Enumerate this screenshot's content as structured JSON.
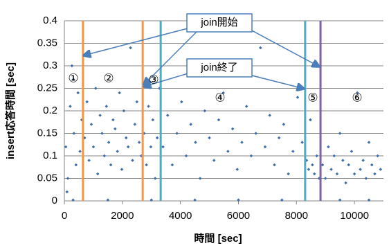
{
  "chart_data": {
    "type": "scatter",
    "x_label": "時間 [sec]",
    "y_label": "insert応答時間 [sec]",
    "xlim": [
      0,
      11000
    ],
    "xticks": [
      0,
      2000,
      4000,
      6000,
      8000,
      10000
    ],
    "ylim": [
      0,
      0.4
    ],
    "yticks": [
      0,
      0.05,
      0.1,
      0.15,
      0.2,
      0.25,
      0.3,
      0.35,
      0.4
    ],
    "grid": true,
    "color": "#3d6eab",
    "x": [
      50,
      120,
      200,
      260,
      330,
      400,
      470,
      540,
      600,
      90,
      310,
      700,
      780,
      850,
      930,
      1000,
      1080,
      1150,
      1230,
      1300,
      1380,
      1450,
      1530,
      1600,
      1680,
      1750,
      1830,
      1900,
      1980,
      2050,
      2130,
      2200,
      2280,
      2350,
      2430,
      2500,
      2580,
      2650,
      2750,
      2830,
      2900,
      2980,
      3050,
      3130,
      3200,
      3280,
      3400,
      3560,
      3720,
      3880,
      4040,
      4200,
      4360,
      4520,
      4680,
      4840,
      5000,
      5160,
      5320,
      5480,
      5640,
      5800,
      5960,
      6120,
      6280,
      6440,
      6600,
      6760,
      6920,
      7080,
      7240,
      7400,
      7560,
      7720,
      7880,
      8040,
      8200,
      300,
      1500,
      3000,
      4500,
      6000,
      7500,
      9500,
      10500,
      8350,
      8420,
      8480,
      8550,
      8620,
      8700,
      8780,
      8900,
      9000,
      9100,
      9200,
      9300,
      9400,
      9500,
      9600,
      9700,
      9800,
      9900,
      10000,
      10100,
      10200,
      10300,
      10400,
      10500,
      10600,
      10700,
      10800,
      10900
    ],
    "values": [
      0.12,
      0.05,
      0.21,
      0.3,
      0.15,
      0.08,
      0.24,
      0.11,
      0.18,
      0.02,
      0.27,
      0.14,
      0.22,
      0.09,
      0.17,
      0.12,
      0.25,
      0.06,
      0.19,
      0.15,
      0.1,
      0.21,
      0.13,
      0.08,
      0.18,
      0.16,
      0.11,
      0.24,
      0.07,
      0.2,
      0.14,
      0.12,
      0.34,
      0.09,
      0.17,
      0.22,
      0.13,
      0.1,
      0.15,
      0.08,
      0.21,
      0.12,
      0.18,
      0.05,
      0.14,
      0.25,
      0.12,
      0.19,
      0.08,
      0.15,
      0.22,
      0.1,
      0.17,
      0.13,
      0.05,
      0.2,
      0.14,
      0.09,
      0.18,
      0.24,
      0.11,
      0.16,
      0.07,
      0.13,
      0.21,
      0.1,
      0.15,
      0.34,
      0.12,
      0.19,
      0.08,
      0.14,
      0.17,
      0.06,
      0.11,
      0.23,
      0.13,
      0.002,
      0.002,
      0.002,
      0.002,
      0.002,
      0.002,
      0.002,
      0.002,
      0.09,
      0.07,
      0.18,
      0.08,
      0.06,
      0.1,
      0.05,
      0.08,
      0.05,
      0.12,
      0.07,
      0.1,
      0.06,
      0.15,
      0.09,
      0.04,
      0.08,
      0.11,
      0.06,
      0.24,
      0.07,
      0.09,
      0.05,
      0.13,
      0.08,
      0.06,
      0.1,
      0.07
    ],
    "vlines": [
      {
        "x": 640,
        "color": "#f79646"
      },
      {
        "x": 2700,
        "color": "#f79646"
      },
      {
        "x": 3320,
        "color": "#4bacc6"
      },
      {
        "x": 8300,
        "color": "#4bacc6"
      },
      {
        "x": 8830,
        "color": "#8064a2"
      }
    ],
    "callouts": [
      "join開始",
      "join終了"
    ],
    "region_labels": [
      "①",
      "②",
      "③",
      "④",
      "⑤",
      "⑥"
    ]
  }
}
